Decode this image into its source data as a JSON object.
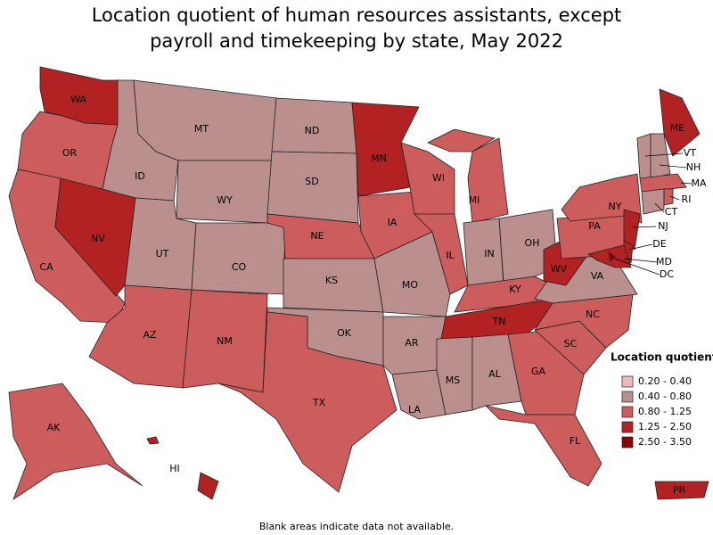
{
  "title": [
    "Location quotient of human resources assistants, except",
    "payroll and timekeeping by state, May 2022"
  ],
  "states": [
    {
      "label": "WA",
      "color": "#b22222"
    },
    {
      "label": "OR",
      "color": "#cd5c5c"
    },
    {
      "label": "CA",
      "color": "#cd5c5c"
    },
    {
      "label": "NV",
      "color": "#b22222"
    },
    {
      "label": "ID",
      "color": "#bc8f8f"
    },
    {
      "label": "MT",
      "color": "#bc8f8f"
    },
    {
      "label": "WY",
      "color": "#bc8f8f"
    },
    {
      "label": "UT",
      "color": "#bc8f8f"
    },
    {
      "label": "CO",
      "color": "#bc8f8f"
    },
    {
      "label": "AZ",
      "color": "#cd5c5c"
    },
    {
      "label": "NM",
      "color": "#cd5c5c"
    },
    {
      "label": "ND",
      "color": "#bc8f8f"
    },
    {
      "label": "SD",
      "color": "#bc8f8f"
    },
    {
      "label": "NE",
      "color": "#cd5c5c"
    },
    {
      "label": "KS",
      "color": "#bc8f8f"
    },
    {
      "label": "OK",
      "color": "#bc8f8f"
    },
    {
      "label": "TX",
      "color": "#cd5c5c"
    },
    {
      "label": "MN",
      "color": "#b22222"
    },
    {
      "label": "IA",
      "color": "#cd5c5c"
    },
    {
      "label": "MO",
      "color": "#bc8f8f"
    },
    {
      "label": "AR",
      "color": "#bc8f8f"
    },
    {
      "label": "LA",
      "color": "#bc8f8f"
    },
    {
      "label": "WI",
      "color": "#cd5c5c"
    },
    {
      "label": "IL",
      "color": "#cd5c5c"
    },
    {
      "label": "MI",
      "color": "#cd5c5c"
    },
    {
      "label": "IN",
      "color": "#bc8f8f"
    },
    {
      "label": "OH",
      "color": "#bc8f8f"
    },
    {
      "label": "KY",
      "color": "#cd5c5c"
    },
    {
      "label": "TN",
      "color": "#b22222"
    },
    {
      "label": "MS",
      "color": "#bc8f8f"
    },
    {
      "label": "AL",
      "color": "#bc8f8f"
    },
    {
      "label": "GA",
      "color": "#cd5c5c"
    },
    {
      "label": "FL",
      "color": "#cd5c5c"
    },
    {
      "label": "SC",
      "color": "#cd5c5c"
    },
    {
      "label": "NC",
      "color": "#cd5c5c"
    },
    {
      "label": "VA",
      "color": "#bc8f8f"
    },
    {
      "label": "WV",
      "color": "#b22222"
    },
    {
      "label": "PA",
      "color": "#cd5c5c"
    },
    {
      "label": "NY",
      "color": "#cd5c5c"
    },
    {
      "label": "ME",
      "color": "#b22222"
    },
    {
      "label": "VT",
      "color": "#bc8f8f"
    },
    {
      "label": "NH",
      "color": "#bc8f8f"
    },
    {
      "label": "MA",
      "color": "#cd5c5c"
    },
    {
      "label": "CT",
      "color": "#bc8f8f"
    },
    {
      "label": "RI",
      "color": "#cd5c5c"
    },
    {
      "label": "NJ",
      "color": "#b22222"
    },
    {
      "label": "DE",
      "color": "#b22222"
    },
    {
      "label": "MD",
      "color": "#b22222"
    },
    {
      "label": "DC",
      "color": "#8b0000"
    },
    {
      "label": "AK",
      "color": "#cd5c5c"
    },
    {
      "label": "HI",
      "color": "#b22222"
    },
    {
      "label": "PR",
      "color": "#b22222"
    }
  ],
  "legend": {
    "title": "Location quotient",
    "items": [
      {
        "label": "0.20 - 0.40",
        "color": "#f4b8b8"
      },
      {
        "label": "0.40 - 0.80",
        "color": "#bc8f8f"
      },
      {
        "label": "0.80 - 1.25",
        "color": "#cd5c5c"
      },
      {
        "label": "1.25 - 2.50",
        "color": "#b22222"
      },
      {
        "label": "2.50 - 3.50",
        "color": "#8b0000"
      }
    ]
  },
  "note": "Blank areas indicate data not available."
}
